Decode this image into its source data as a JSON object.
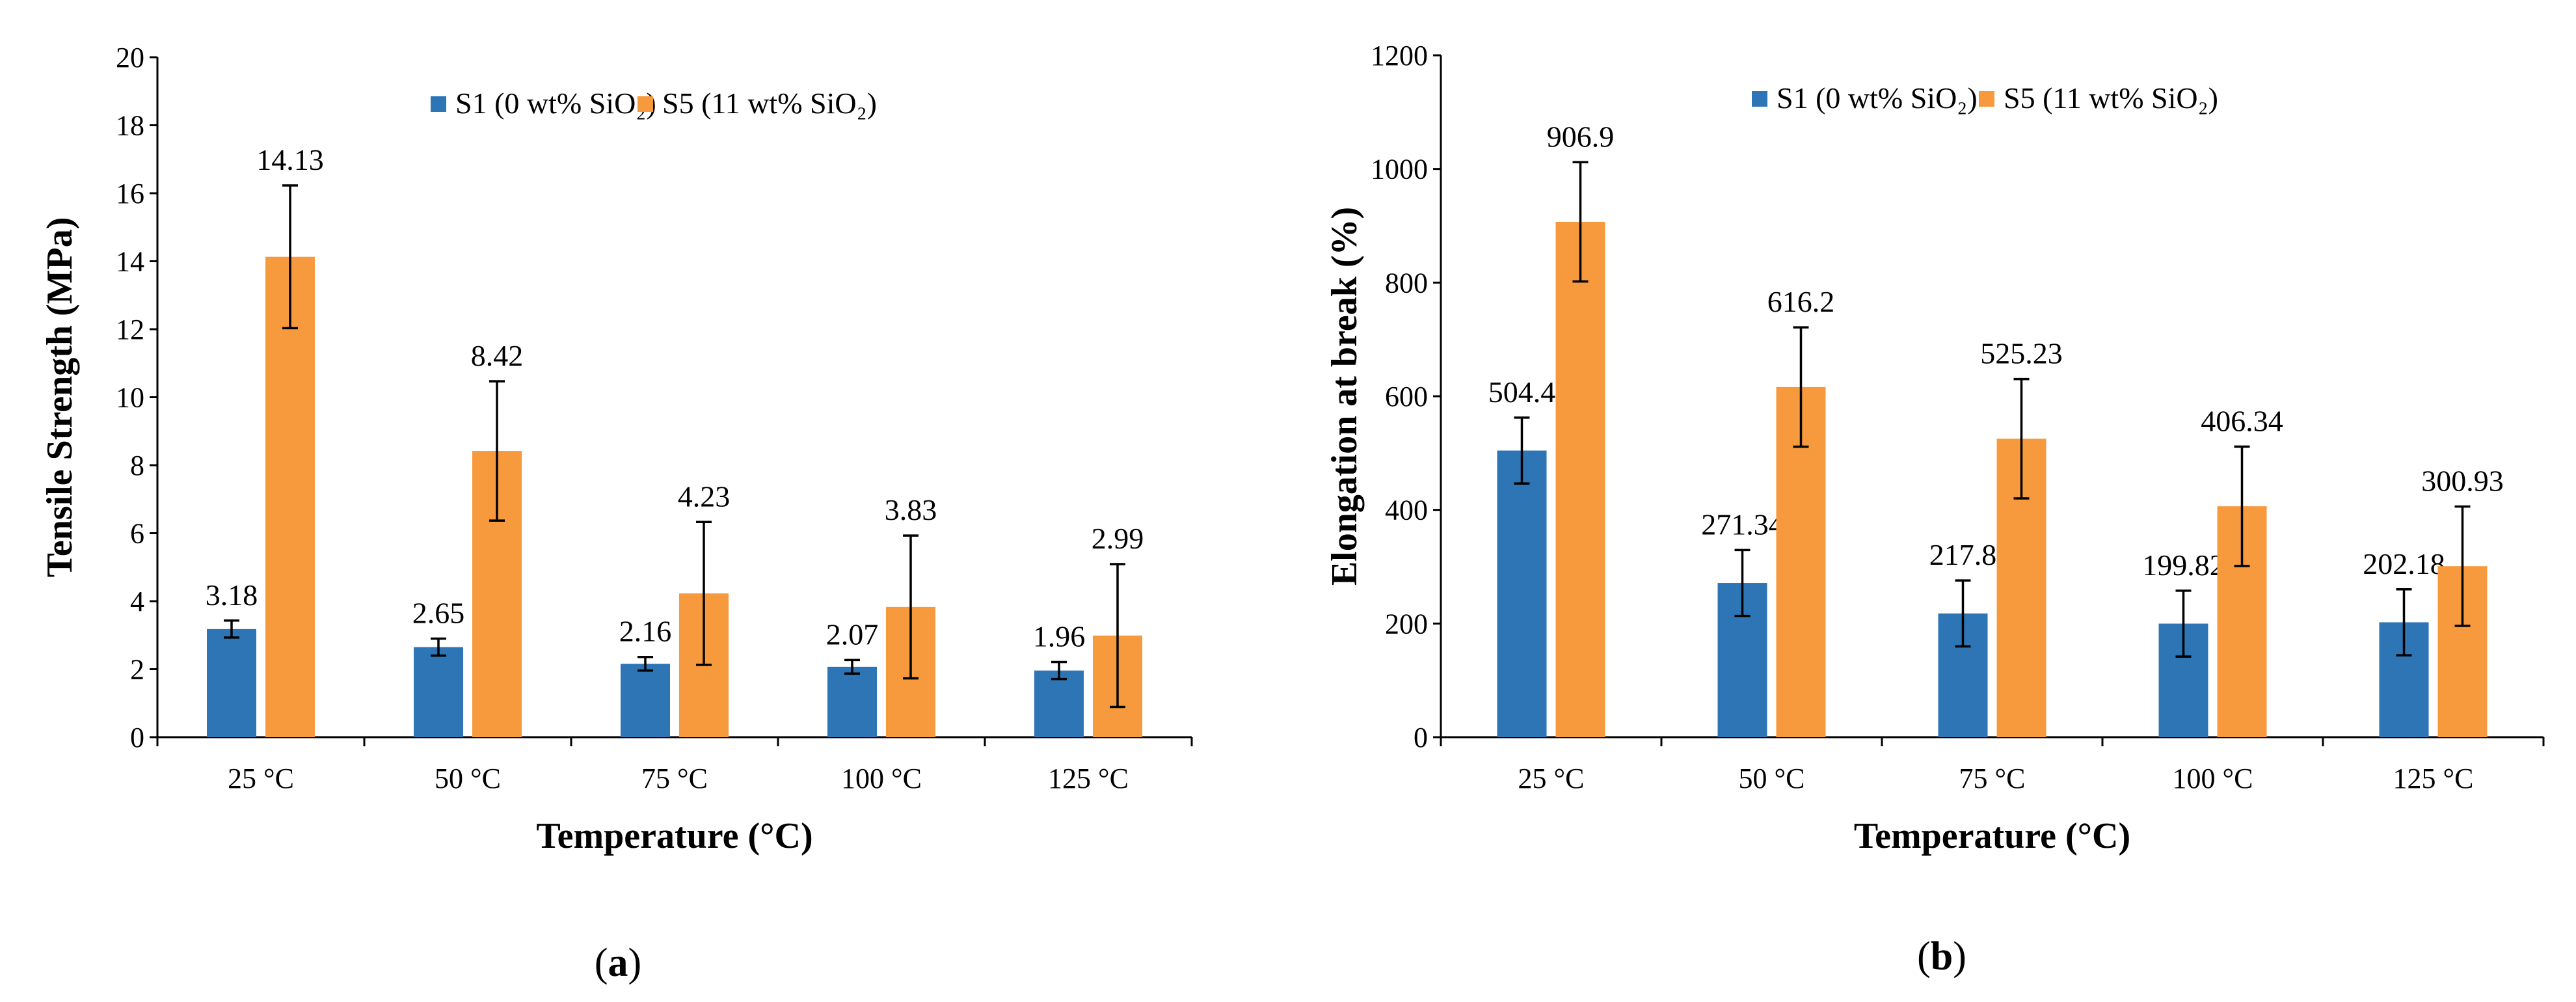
{
  "colors": {
    "s1": "#2E75B6",
    "s5": "#F79A3E",
    "axis": "#000000",
    "error": "#000000"
  },
  "chart_data": [
    {
      "type": "bar",
      "panel_label": "(a)",
      "panel_letter": "a",
      "categories": [
        "25 °C",
        "50 °C",
        "75 °C",
        "100 °C",
        "125  °C"
      ],
      "series": [
        {
          "name": "S1 (0 wt% SiO₂)",
          "values": [
            3.18,
            2.65,
            2.16,
            2.07,
            1.96
          ],
          "errors": [
            0.25,
            0.25,
            0.2,
            0.2,
            0.25
          ],
          "labels": [
            "3.18",
            "2.65",
            "2.16",
            "2.07",
            "1.96"
          ]
        },
        {
          "name": "S5 (11 wt% SiO₂)",
          "values": [
            14.13,
            8.42,
            4.23,
            3.83,
            2.99
          ],
          "errors": [
            2.1,
            2.05,
            2.1,
            2.1,
            2.1
          ],
          "labels": [
            "14.13",
            "8.42",
            "4.23",
            "3.83",
            "2.99"
          ]
        }
      ],
      "xlabel": "Temperature (°C)",
      "ylabel": "Tensile Strength (MPa)",
      "ylim": [
        0,
        20
      ],
      "yticks": [
        0,
        2,
        4,
        6,
        8,
        10,
        12,
        14,
        16,
        18,
        20
      ],
      "legend": "top-center",
      "grid": false
    },
    {
      "type": "bar",
      "panel_label": "(b)",
      "panel_letter": "b",
      "categories": [
        "25 °C",
        "50 °C",
        "75 °C",
        "100 °C",
        "125  °C"
      ],
      "series": [
        {
          "name": "S1 (0 wt% SiO₂)",
          "values": [
            504.4,
            271.34,
            217.8,
            199.82,
            202.18
          ],
          "errors": [
            58,
            58,
            58,
            58,
            58
          ],
          "labels": [
            "504.4",
            "271.34",
            "217.8",
            "199.82",
            "202.18"
          ]
        },
        {
          "name": "S5 (11 wt% SiO₂)",
          "values": [
            906.9,
            616.2,
            525.23,
            406.34,
            300.93
          ],
          "errors": [
            105,
            105,
            105,
            105,
            105
          ],
          "labels": [
            "906.9",
            "616.2",
            "525.23",
            "406.34",
            "300.93"
          ]
        }
      ],
      "xlabel": "Temperature (°C)",
      "ylabel": "Elongation at break (%)",
      "ylim": [
        0,
        1200
      ],
      "yticks": [
        0,
        200,
        400,
        600,
        800,
        1000,
        1200
      ],
      "legend": "top-center",
      "grid": false
    }
  ]
}
